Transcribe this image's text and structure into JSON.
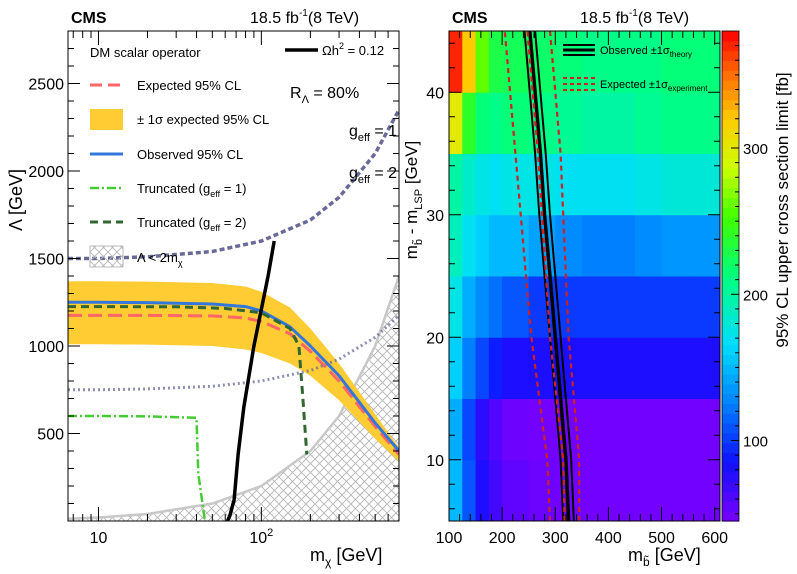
{
  "chart_data": [
    {
      "type": "line",
      "experiment": "CMS",
      "luminosity": "18.5 fb",
      "lumi_exp": "-1",
      "energy": "(8 TeV)",
      "xlabel": "m",
      "xlabel_sub": "χ",
      "xunit": " [GeV]",
      "ylabel": "Λ [GeV]",
      "xscale": "log",
      "xlim": [
        6.5,
        700
      ],
      "ylim": [
        0,
        2800
      ],
      "xticks": [
        {
          "v": 10,
          "label": "10"
        },
        {
          "v": 100,
          "label": "10",
          "exp": "2"
        }
      ],
      "yticks": [
        {
          "v": 500,
          "label": "500"
        },
        {
          "v": 1000,
          "label": "1000"
        },
        {
          "v": 1500,
          "label": "1500"
        },
        {
          "v": 2000,
          "label": "2000"
        },
        {
          "v": 2500,
          "label": "2500"
        }
      ],
      "operator_label": "DM scalar operator",
      "relic_label": "Ωh",
      "relic_value": " = 0.12",
      "r_label": "R",
      "r_sub": "Λ",
      "r_value": " = 80%",
      "geff1_label": "g",
      "geff1_value": " = 1",
      "geff2_label": "g",
      "geff2_value": " = 2",
      "geff_sub": "eff",
      "legend": {
        "expected": "Expected 95% CL",
        "band": "± 1σ expected 95% CL",
        "observed": "Observed 95% CL",
        "trunc1": "Truncated (g",
        "trunc1_end": " = 1)",
        "trunc2": "Truncated (g",
        "trunc2_end": " = 2)",
        "region": "Λ < 2m",
        "region_sub": "χ"
      },
      "colors": {
        "expected": "#ff6666",
        "band": "#ffcc33",
        "observed": "#3377dd",
        "trunc1": "#44cc33",
        "trunc2": "#336633",
        "geff": "#6a6a99",
        "relic": "#000000",
        "hatch": "#bbbbbb"
      },
      "series": [
        {
          "name": "Observed 95% CL",
          "x": [
            6.5,
            10,
            20,
            50,
            80,
            100,
            150,
            200,
            300,
            500,
            700
          ],
          "y": [
            1250,
            1250,
            1248,
            1240,
            1225,
            1200,
            1110,
            1000,
            830,
            560,
            400
          ]
        },
        {
          "name": "Expected 95% CL",
          "x": [
            6.5,
            10,
            20,
            50,
            80,
            100,
            150,
            200,
            300,
            500,
            700
          ],
          "y": [
            1175,
            1175,
            1175,
            1172,
            1160,
            1140,
            1070,
            970,
            800,
            540,
            380
          ]
        },
        {
          "name": "± 1σ upper",
          "x": [
            6.5,
            10,
            20,
            50,
            80,
            100,
            150,
            200,
            300,
            500,
            700
          ],
          "y": [
            1370,
            1370,
            1368,
            1360,
            1340,
            1310,
            1220,
            1100,
            900,
            610,
            420
          ]
        },
        {
          "name": "± 1σ lower",
          "x": [
            6.5,
            10,
            20,
            50,
            80,
            100,
            150,
            200,
            300,
            500,
            700
          ],
          "y": [
            1010,
            1010,
            1008,
            1000,
            980,
            960,
            900,
            830,
            690,
            470,
            340
          ]
        },
        {
          "name": "Truncated (g_eff = 1)",
          "x": [
            6.5,
            10,
            20,
            40,
            41,
            45
          ],
          "y": [
            600,
            600,
            598,
            590,
            270,
            0
          ]
        },
        {
          "name": "Truncated (g_eff = 2)",
          "x": [
            6.5,
            10,
            30,
            60,
            100,
            150,
            170,
            180,
            190
          ],
          "y": [
            1225,
            1225,
            1224,
            1215,
            1190,
            1100,
            1000,
            700,
            380
          ]
        },
        {
          "name": "g_eff = 1",
          "x": [
            6.5,
            10,
            20,
            50,
            100,
            200,
            300,
            500,
            700
          ],
          "y": [
            1500,
            1500,
            1510,
            1540,
            1600,
            1720,
            1850,
            2100,
            2350
          ]
        },
        {
          "name": "g_eff = 2",
          "x": [
            6.5,
            10,
            20,
            50,
            100,
            200,
            300,
            500,
            700
          ],
          "y": [
            750,
            750,
            755,
            770,
            800,
            860,
            925,
            1050,
            1175
          ]
        },
        {
          "name": "Ωh² = 0.12",
          "x": [
            62,
            64,
            68,
            72,
            78,
            90,
            110,
            120
          ],
          "y": [
            0,
            30,
            120,
            380,
            650,
            1000,
            1400,
            1600
          ]
        },
        {
          "name": "Λ = 2m_χ",
          "x": [
            6.5,
            10,
            20,
            50,
            100,
            200,
            300,
            500,
            700
          ],
          "y": [
            13,
            20,
            40,
            100,
            200,
            400,
            600,
            1000,
            1400
          ]
        }
      ]
    },
    {
      "type": "heatmap",
      "experiment": "CMS",
      "luminosity": "18.5 fb",
      "lumi_exp": "-1",
      "energy": "(8 TeV)",
      "xlabel": "m",
      "xlabel_sub": "b̃",
      "xunit": " [GeV]",
      "ylabel": "m",
      "ylabel_sub": "b̃",
      "ylabel_mid": " - m",
      "ylabel_sub2": "LSP",
      "yunit": " [GeV]",
      "zlabel": "95% CL upper cross section limit [fb]",
      "xlim": [
        100,
        610
      ],
      "ylim": [
        5,
        45
      ],
      "zlim": [
        45,
        380
      ],
      "xticks": [
        100,
        200,
        300,
        400,
        500,
        600
      ],
      "yticks": [
        10,
        20,
        30,
        40
      ],
      "zticks": [
        100,
        200,
        300
      ],
      "x_edges": [
        100,
        125,
        150,
        175,
        200,
        250,
        300,
        350,
        400,
        450,
        500,
        550,
        610
      ],
      "y_edges": [
        5,
        10,
        15,
        20,
        25,
        30,
        35,
        40,
        45
      ],
      "z": [
        [
          150,
          110,
          80,
          65,
          55,
          50,
          48,
          48,
          48,
          48,
          48,
          48
        ],
        [
          145,
          105,
          75,
          60,
          50,
          48,
          48,
          48,
          48,
          48,
          48,
          48
        ],
        [
          160,
          125,
          105,
          90,
          80,
          80,
          80,
          80,
          80,
          80,
          80,
          80
        ],
        [
          175,
          145,
          130,
          120,
          110,
          100,
          100,
          100,
          100,
          100,
          100,
          100
        ],
        [
          190,
          170,
          160,
          150,
          150,
          140,
          130,
          125,
          125,
          130,
          135,
          135
        ],
        [
          200,
          185,
          175,
          170,
          175,
          175,
          170,
          170,
          170,
          175,
          180,
          180
        ],
        [
          300,
          240,
          215,
          210,
          215,
          210,
          205,
          200,
          200,
          205,
          210,
          210
        ],
        [
          370,
          320,
          260,
          230,
          225,
          220,
          215,
          210,
          210,
          210,
          215,
          215
        ]
      ],
      "legend": {
        "observed": "Observed ±1σ",
        "observed_sub": "theory",
        "expected": "Expected ±1σ",
        "expected_sub": "experiment"
      },
      "colors": {
        "observed": "#000000",
        "expected": "#cc2222"
      },
      "series": [
        {
          "name": "Observed",
          "x": [
            325,
            320,
            310,
            300,
            290,
            280,
            272,
            262,
            252,
            242
          ],
          "y": [
            5,
            10,
            15,
            20,
            25,
            30,
            35,
            40,
            45,
            47
          ]
        },
        {
          "name": "Observed +1σ theory",
          "x": [
            335,
            330,
            320,
            310,
            300,
            290,
            282,
            272,
            262,
            252
          ],
          "y": [
            5,
            10,
            15,
            20,
            25,
            30,
            35,
            40,
            45,
            47
          ]
        },
        {
          "name": "Observed -1σ theory",
          "x": [
            315,
            310,
            300,
            290,
            280,
            270,
            262,
            252,
            242,
            232
          ],
          "y": [
            5,
            10,
            15,
            20,
            25,
            30,
            35,
            40,
            45,
            47
          ]
        },
        {
          "name": "Expected +1σ experiment",
          "x": [
            345,
            345,
            335,
            325,
            320,
            315,
            310,
            300,
            290,
            280
          ],
          "y": [
            5,
            10,
            15,
            20,
            25,
            30,
            35,
            40,
            45,
            47
          ]
        },
        {
          "name": "Expected -1σ experiment",
          "x": [
            290,
            285,
            270,
            255,
            245,
            235,
            225,
            215,
            205,
            195
          ],
          "y": [
            5,
            10,
            15,
            20,
            25,
            30,
            35,
            40,
            45,
            47
          ]
        }
      ]
    }
  ]
}
